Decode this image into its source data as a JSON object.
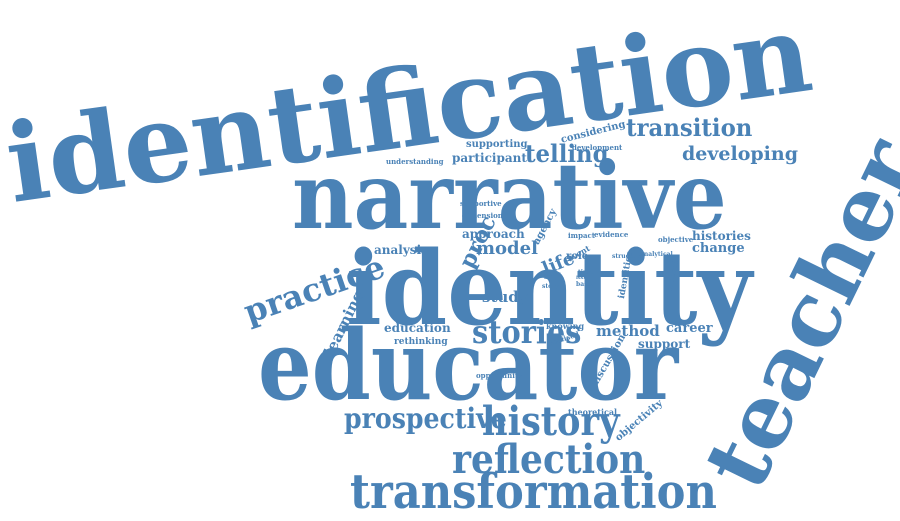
{
  "accent_color": "#4a82b6",
  "words": {
    "identification": "identification",
    "narrative": "narrative",
    "teacher": "teacher",
    "identity": "identity",
    "educator": "educator",
    "transformation": "transformation",
    "reflection": "reflection",
    "history": "history",
    "stories": "stories",
    "prospective": "prospective",
    "practice": "practice",
    "transition": "transition",
    "telling": "telling",
    "developing": "developing",
    "participant": "participant",
    "supporting": "supporting",
    "considering": "considering",
    "development": "development",
    "understanding": "understanding",
    "supportive": "supportive",
    "dimension": "dimension",
    "approach": "approach",
    "proc": "proc",
    "agency": "agency",
    "impact": "impact",
    "evidence": "evidence",
    "objective": "objective",
    "histories": "histories",
    "change": "change",
    "analysis": "analysis",
    "model": "model",
    "life": "life",
    "event": "event",
    "role": "role",
    "structure": "structure",
    "analytical": "analytical",
    "self": "self",
    "time": "time",
    "story": "story",
    "based": "based",
    "issue": "issue",
    "identities": "identities",
    "evidenced": "evidenced",
    "study": "study",
    "learning": "learning",
    "education": "education",
    "knowing": "knowing",
    "rethinking": "rethinking",
    "realised": "realised",
    "method": "method",
    "career": "career",
    "support": "support",
    "discussion": "discussion",
    "opportunity": "opportunity",
    "theoretical": "theoretical",
    "objectivity": "objectivity"
  }
}
